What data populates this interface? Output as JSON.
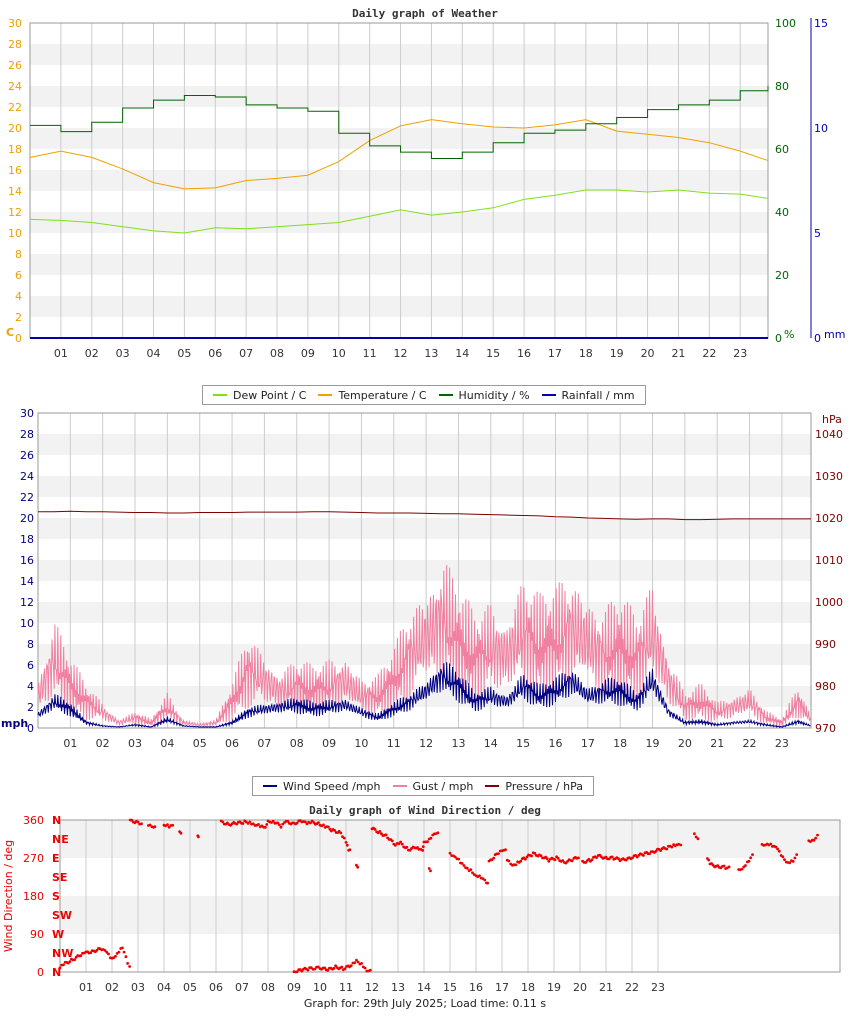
{
  "colors": {
    "dew": "#7fe01a",
    "temp": "#f0a000",
    "humidity": "#006400",
    "rain": "#0000aa",
    "wind": "#000080",
    "gust": "#f07fa0",
    "pressure": "#800000",
    "direction": "#ee0000",
    "band": "#f2f2f2",
    "grid": "#cccccc"
  },
  "footer": "Graph for: 29th July 2025; Load time: 0.11 s",
  "chart_data": [
    {
      "type": "line",
      "title": "Daily graph of Weather",
      "x_ticks": [
        "01",
        "02",
        "03",
        "04",
        "05",
        "06",
        "07",
        "08",
        "09",
        "10",
        "11",
        "12",
        "13",
        "14",
        "15",
        "16",
        "17",
        "18",
        "19",
        "20",
        "21",
        "22",
        "23"
      ],
      "ylim_left": [
        0,
        30
      ],
      "y_ticks_left": [
        "0",
        "2",
        "4",
        "6",
        "8",
        "10",
        "12",
        "14",
        "16",
        "18",
        "20",
        "22",
        "24",
        "26",
        "28",
        "30"
      ],
      "y_unit_left": "C",
      "ylim_mid": [
        0,
        100
      ],
      "y_ticks_mid": [
        "0",
        "20",
        "40",
        "60",
        "80",
        "100"
      ],
      "y_unit_mid": "%",
      "ylim_right": [
        0,
        15
      ],
      "y_ticks_right": [
        "0",
        "5",
        "10",
        "15"
      ],
      "y_unit_right": "mm",
      "x": [
        0,
        1,
        2,
        3,
        4,
        5,
        6,
        7,
        8,
        9,
        10,
        11,
        12,
        13,
        14,
        15,
        16,
        17,
        18,
        19,
        20,
        21,
        22,
        23,
        23.9
      ],
      "series": [
        {
          "name": "Dew Point / C",
          "axis": "left",
          "color_key": "dew",
          "values": [
            11.3,
            11.2,
            11.0,
            10.6,
            10.2,
            10.0,
            10.5,
            10.4,
            10.6,
            10.8,
            11.0,
            11.6,
            12.2,
            11.7,
            12.0,
            12.4,
            13.2,
            13.6,
            14.1,
            14.1,
            13.9,
            14.1,
            13.8,
            13.7,
            13.3
          ]
        },
        {
          "name": "Temperature / C",
          "axis": "left",
          "color_key": "temp",
          "values": [
            17.2,
            17.8,
            17.2,
            16.1,
            14.8,
            14.2,
            14.3,
            15.0,
            15.2,
            15.5,
            16.8,
            18.8,
            20.2,
            20.8,
            20.4,
            20.1,
            20.0,
            20.3,
            20.8,
            19.7,
            19.4,
            19.1,
            18.6,
            17.8,
            16.9
          ]
        },
        {
          "name": "Humidity / %",
          "axis": "mid",
          "color_key": "humidity",
          "values": [
            67.5,
            65.5,
            68.5,
            73.0,
            75.5,
            77.0,
            76.5,
            74.0,
            73.0,
            72.0,
            65.0,
            61.0,
            59.0,
            57.0,
            59.0,
            62.0,
            65.0,
            66.0,
            68.0,
            70.0,
            72.5,
            74.0,
            75.5,
            78.5,
            80.0
          ]
        },
        {
          "name": "Rainfall / mm",
          "axis": "right",
          "color_key": "rain",
          "values": [
            0,
            0,
            0,
            0,
            0,
            0,
            0,
            0,
            0,
            0,
            0,
            0,
            0,
            0,
            0,
            0,
            0,
            0,
            0,
            0,
            0,
            0,
            0,
            0,
            0
          ]
        }
      ]
    },
    {
      "type": "line",
      "title": "",
      "x_ticks": [
        "01",
        "02",
        "03",
        "04",
        "05",
        "06",
        "07",
        "08",
        "09",
        "10",
        "11",
        "12",
        "13",
        "14",
        "15",
        "16",
        "17",
        "18",
        "19",
        "20",
        "21",
        "22",
        "23"
      ],
      "ylim_left": [
        0,
        30
      ],
      "y_ticks_left": [
        "0",
        "2",
        "4",
        "6",
        "8",
        "10",
        "12",
        "14",
        "16",
        "18",
        "20",
        "22",
        "24",
        "26",
        "28",
        "30"
      ],
      "y_unit_left": "mph",
      "ylim_right": [
        970,
        1045
      ],
      "y_ticks_right": [
        "970",
        "980",
        "990",
        "1000",
        "1010",
        "1020",
        "1030",
        "1040"
      ],
      "y_unit_right": "hPa",
      "x": [
        0,
        0.5,
        1,
        1.5,
        2,
        2.5,
        3,
        3.5,
        4,
        4.5,
        5,
        5.5,
        6,
        6.5,
        7,
        7.5,
        8,
        8.5,
        9,
        9.5,
        10,
        10.5,
        11,
        11.5,
        12,
        12.5,
        13,
        13.5,
        14,
        14.5,
        15,
        15.5,
        16,
        16.5,
        17,
        17.5,
        18,
        18.5,
        19,
        19.5,
        20,
        20.5,
        21,
        21.5,
        22,
        22.5,
        23,
        23.5,
        23.9
      ],
      "series": [
        {
          "name": "Wind Speed /mph",
          "axis": "left",
          "color_key": "wind",
          "values": [
            1.2,
            2.5,
            1.8,
            0.5,
            0.2,
            0.1,
            0.3,
            0.1,
            0.8,
            0.2,
            0.1,
            0.1,
            0.5,
            1.5,
            1.8,
            2.0,
            2.2,
            1.8,
            2.0,
            2.2,
            1.5,
            1.0,
            1.8,
            2.5,
            3.5,
            5.0,
            4.0,
            2.5,
            3.0,
            2.5,
            4.0,
            3.0,
            3.5,
            4.5,
            3.0,
            3.5,
            3.5,
            2.5,
            4.5,
            1.5,
            0.5,
            0.6,
            0.3,
            0.5,
            0.6,
            0.3,
            0.1,
            0.6,
            0.2
          ]
        },
        {
          "name": "Gust / mph",
          "axis": "left",
          "color_key": "gust",
          "values": [
            3.0,
            6.5,
            4.0,
            2.5,
            1.5,
            0.5,
            1.0,
            0.5,
            2.0,
            0.5,
            0.3,
            0.5,
            2.5,
            5.5,
            4.5,
            3.5,
            4.0,
            3.5,
            4.0,
            4.5,
            3.0,
            3.0,
            4.5,
            7.0,
            8.5,
            10.5,
            8.0,
            6.5,
            7.5,
            7.0,
            9.0,
            7.5,
            8.0,
            9.5,
            8.0,
            7.0,
            7.5,
            6.5,
            9.0,
            4.5,
            2.0,
            2.5,
            1.5,
            2.0,
            2.5,
            1.0,
            0.5,
            2.5,
            0.8
          ]
        },
        {
          "name": "Pressure / hPa",
          "axis": "right",
          "color_key": "pressure",
          "values": [
            1021.5,
            1021.5,
            1021.6,
            1021.5,
            1021.5,
            1021.4,
            1021.3,
            1021.3,
            1021.2,
            1021.2,
            1021.3,
            1021.3,
            1021.3,
            1021.4,
            1021.4,
            1021.4,
            1021.4,
            1021.5,
            1021.5,
            1021.4,
            1021.3,
            1021.2,
            1021.2,
            1021.2,
            1021.1,
            1021.0,
            1021.0,
            1020.9,
            1020.8,
            1020.7,
            1020.6,
            1020.5,
            1020.3,
            1020.2,
            1020.0,
            1019.9,
            1019.8,
            1019.7,
            1019.8,
            1019.8,
            1019.6,
            1019.6,
            1019.7,
            1019.8,
            1019.8,
            1019.8,
            1019.8,
            1019.8,
            1019.8
          ]
        }
      ]
    },
    {
      "type": "scatter",
      "title": "Daily graph of Wind Direction / deg",
      "ylabel": "Wind Direction / deg",
      "x_ticks": [
        "01",
        "02",
        "03",
        "04",
        "05",
        "06",
        "07",
        "08",
        "09",
        "10",
        "11",
        "12",
        "13",
        "14",
        "15",
        "16",
        "17",
        "18",
        "19",
        "20",
        "21",
        "22",
        "23"
      ],
      "ylim": [
        0,
        360
      ],
      "y_ticks": [
        "0",
        "90",
        "180",
        "270",
        "360"
      ],
      "compass_labels": [
        "N",
        "NE",
        "E",
        "SE",
        "S",
        "SW",
        "W",
        "NW",
        "N"
      ],
      "segments": [
        [
          [
            0.0,
            10
          ],
          [
            0.2,
            20
          ],
          [
            0.5,
            30
          ],
          [
            0.8,
            40
          ],
          [
            1.0,
            45
          ],
          [
            1.3,
            50
          ],
          [
            1.6,
            55
          ],
          [
            1.8,
            45
          ],
          [
            2.0,
            30
          ],
          [
            2.2,
            45
          ],
          [
            2.4,
            60
          ],
          [
            2.6,
            20
          ],
          [
            2.75,
            0
          ]
        ],
        [
          [
            2.7,
            358
          ],
          [
            3.0,
            355
          ],
          [
            3.2,
            350
          ]
        ],
        [
          [
            3.4,
            348
          ],
          [
            3.6,
            340
          ],
          [
            3.7,
            345
          ]
        ],
        [
          [
            4.0,
            350
          ],
          [
            4.2,
            345
          ],
          [
            4.4,
            345
          ]
        ],
        [
          [
            4.6,
            330
          ],
          [
            4.7,
            330
          ]
        ],
        [
          [
            5.3,
            320
          ],
          [
            5.35,
            315
          ]
        ],
        [
          [
            6.2,
            355
          ],
          [
            6.5,
            350
          ],
          [
            6.8,
            352
          ],
          [
            7.1,
            355
          ],
          [
            7.3,
            355
          ],
          [
            7.5,
            350
          ],
          [
            7.7,
            345
          ],
          [
            7.9,
            340
          ],
          [
            8.0,
            355
          ],
          [
            8.2,
            358
          ],
          [
            8.5,
            345
          ],
          [
            8.7,
            355
          ],
          [
            9.0,
            352
          ],
          [
            9.3,
            358
          ],
          [
            9.5,
            350
          ],
          [
            9.7,
            355
          ],
          [
            10.0,
            350
          ],
          [
            10.2,
            345
          ],
          [
            10.5,
            335
          ],
          [
            10.8,
            330
          ],
          [
            11.0,
            310
          ],
          [
            11.1,
            290
          ],
          [
            11.2,
            285
          ]
        ],
        [
          [
            11.4,
            250
          ],
          [
            11.5,
            245
          ]
        ],
        [
          [
            12.0,
            340
          ],
          [
            12.3,
            330
          ],
          [
            12.6,
            320
          ],
          [
            12.9,
            300
          ],
          [
            13.1,
            305
          ],
          [
            13.4,
            290
          ],
          [
            13.7,
            295
          ],
          [
            13.8,
            290
          ],
          [
            13.95,
            285
          ],
          [
            14.0,
            305
          ],
          [
            14.2,
            315
          ],
          [
            14.4,
            330
          ],
          [
            14.6,
            325
          ]
        ],
        [
          [
            14.2,
            245
          ],
          [
            14.3,
            240
          ]
        ],
        [
          [
            15.0,
            280
          ],
          [
            15.2,
            275
          ],
          [
            15.4,
            260
          ],
          [
            15.6,
            245
          ],
          [
            15.8,
            240
          ],
          [
            16.0,
            230
          ],
          [
            16.2,
            225
          ],
          [
            16.4,
            210
          ],
          [
            16.5,
            205
          ]
        ],
        [
          [
            16.5,
            260
          ],
          [
            16.8,
            280
          ],
          [
            17.0,
            290
          ],
          [
            17.2,
            285
          ]
        ],
        [
          [
            17.2,
            265
          ],
          [
            17.4,
            250
          ],
          [
            17.6,
            260
          ],
          [
            17.9,
            270
          ],
          [
            18.2,
            280
          ],
          [
            18.5,
            275
          ],
          [
            18.8,
            265
          ],
          [
            19.1,
            270
          ],
          [
            19.4,
            260
          ],
          [
            19.7,
            265
          ],
          [
            20.0,
            275
          ]
        ],
        [
          [
            20.1,
            260
          ],
          [
            20.4,
            265
          ],
          [
            20.7,
            275
          ],
          [
            21.0,
            270
          ],
          [
            21.3,
            270
          ],
          [
            21.6,
            265
          ],
          [
            21.9,
            270
          ],
          [
            22.2,
            275
          ],
          [
            22.5,
            280
          ],
          [
            22.8,
            285
          ],
          [
            23.1,
            290
          ],
          [
            23.4,
            295
          ],
          [
            23.6,
            300
          ],
          [
            23.8,
            305
          ],
          [
            23.95,
            300
          ]
        ],
        [
          [
            24.4,
            325
          ],
          [
            24.6,
            315
          ]
        ],
        [
          [
            24.9,
            270
          ],
          [
            25.0,
            255
          ],
          [
            25.3,
            250
          ],
          [
            25.6,
            248
          ],
          [
            25.8,
            245
          ]
        ],
        [
          [
            26.1,
            240
          ],
          [
            26.3,
            250
          ],
          [
            26.5,
            265
          ],
          [
            26.7,
            280
          ]
        ],
        [
          [
            27.0,
            300
          ],
          [
            27.2,
            305
          ],
          [
            27.4,
            300
          ],
          [
            27.6,
            290
          ],
          [
            27.8,
            270
          ],
          [
            28.0,
            260
          ],
          [
            28.2,
            265
          ],
          [
            28.4,
            280
          ]
        ],
        [
          [
            28.8,
            310
          ],
          [
            29.0,
            315
          ],
          [
            29.2,
            325
          ]
        ]
      ],
      "low_segment": [
        [
          9.0,
          0
        ],
        [
          9.3,
          5
        ],
        [
          9.6,
          8
        ],
        [
          10.0,
          10
        ],
        [
          10.3,
          5
        ],
        [
          10.6,
          12
        ],
        [
          10.9,
          8
        ],
        [
          11.2,
          15
        ],
        [
          11.4,
          25
        ],
        [
          11.6,
          20
        ],
        [
          11.8,
          5
        ],
        [
          12.0,
          0
        ]
      ]
    }
  ],
  "legend1": [
    {
      "label": "Dew Point / C",
      "color_key": "dew"
    },
    {
      "label": "Temperature / C",
      "color_key": "temp"
    },
    {
      "label": "Humidity / %",
      "color_key": "humidity"
    },
    {
      "label": "Rainfall / mm",
      "color_key": "rain"
    }
  ],
  "legend2": [
    {
      "label": "Wind Speed /mph",
      "color_key": "wind"
    },
    {
      "label": "Gust / mph",
      "color_key": "gust"
    },
    {
      "label": "Pressure / hPa",
      "color_key": "pressure"
    }
  ]
}
